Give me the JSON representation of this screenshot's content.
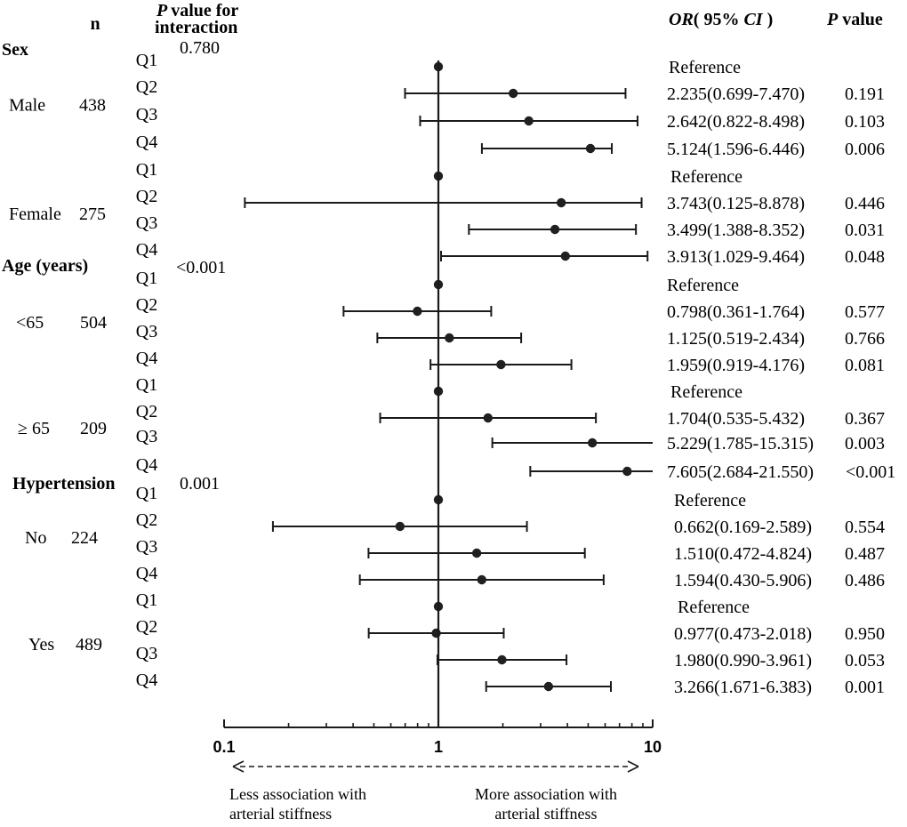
{
  "chart_data": {
    "type": "forest",
    "scale": "log",
    "xlim": [
      0.1,
      10
    ],
    "reference_value": 1,
    "x_ticks": [
      "0.1",
      "1",
      "10"
    ],
    "headers": {
      "n": "n",
      "p_interaction_line1": "value for",
      "p_interaction_p": "P",
      "p_interaction_line2": "interaction",
      "or_label": "OR",
      "ci_open": "( 95% ",
      "ci_label": "CI",
      "ci_close": " )",
      "p_value_p": "P",
      "p_value_label": "value"
    },
    "arrow_left_label": [
      "Less association with",
      "arterial stiffness"
    ],
    "arrow_right_label": [
      "More association with",
      "arterial stiffness"
    ],
    "sections": [
      {
        "title": "Sex",
        "p_interaction": "0.780",
        "groups": [
          {
            "label": "Male",
            "n": "438",
            "rows": [
              {
                "q": "Q1",
                "or": 1,
                "lo": null,
                "hi": null,
                "text": "Reference",
                "p": ""
              },
              {
                "q": "Q2",
                "or": 2.235,
                "lo": 0.699,
                "hi": 7.47,
                "text": "2.235(0.699-7.470)",
                "p": "0.191"
              },
              {
                "q": "Q3",
                "or": 2.642,
                "lo": 0.822,
                "hi": 8.498,
                "text": "2.642(0.822-8.498)",
                "p": "0.103"
              },
              {
                "q": "Q4",
                "or": 5.124,
                "lo": 1.596,
                "hi": 6.446,
                "text": "5.124(1.596-6.446)",
                "p": "0.006"
              }
            ]
          },
          {
            "label": "Female",
            "n": "275",
            "rows": [
              {
                "q": "Q1",
                "or": 1,
                "lo": null,
                "hi": null,
                "text": "Reference",
                "p": ""
              },
              {
                "q": "Q2",
                "or": 3.743,
                "lo": 0.125,
                "hi": 8.878,
                "text": "3.743(0.125-8.878)",
                "p": "0.446"
              },
              {
                "q": "Q3",
                "or": 3.499,
                "lo": 1.388,
                "hi": 8.352,
                "text": "3.499(1.388-8.352)",
                "p": "0.031"
              },
              {
                "q": "Q4",
                "or": 3.913,
                "lo": 1.029,
                "hi": 9.464,
                "text": "3.913(1.029-9.464)",
                "p": "0.048"
              }
            ]
          }
        ]
      },
      {
        "title": "Age (years)",
        "p_interaction": "<0.001",
        "groups": [
          {
            "label": "<65",
            "n": "504",
            "rows": [
              {
                "q": "Q1",
                "or": 1,
                "lo": null,
                "hi": null,
                "text": "Reference",
                "p": ""
              },
              {
                "q": "Q2",
                "or": 0.798,
                "lo": 0.361,
                "hi": 1.764,
                "text": "0.798(0.361-1.764)",
                "p": "0.577"
              },
              {
                "q": "Q3",
                "or": 1.125,
                "lo": 0.519,
                "hi": 2.434,
                "text": "1.125(0.519-2.434)",
                "p": "0.766"
              },
              {
                "q": "Q4",
                "or": 1.959,
                "lo": 0.919,
                "hi": 4.176,
                "text": "1.959(0.919-4.176)",
                "p": "0.081"
              }
            ]
          },
          {
            "label": "≥ 65",
            "n": "209",
            "rows": [
              {
                "q": "Q1",
                "or": 1,
                "lo": null,
                "hi": null,
                "text": "Reference",
                "p": ""
              },
              {
                "q": "Q2",
                "or": 1.704,
                "lo": 0.535,
                "hi": 5.432,
                "text": "1.704(0.535-5.432)",
                "p": "0.367"
              },
              {
                "q": "Q3",
                "or": 5.229,
                "lo": 1.785,
                "hi": 15.315,
                "text": "5.229(1.785-15.315)",
                "p": "0.003"
              },
              {
                "q": "Q4",
                "or": 7.605,
                "lo": 2.684,
                "hi": 21.55,
                "text": "7.605(2.684-21.550)",
                "p": "<0.001"
              }
            ]
          }
        ]
      },
      {
        "title": "Hypertension",
        "p_interaction": "0.001",
        "groups": [
          {
            "label": "No",
            "n": "224",
            "rows": [
              {
                "q": "Q1",
                "or": 1,
                "lo": null,
                "hi": null,
                "text": "Reference",
                "p": ""
              },
              {
                "q": "Q2",
                "or": 0.662,
                "lo": 0.169,
                "hi": 2.589,
                "text": "0.662(0.169-2.589)",
                "p": "0.554"
              },
              {
                "q": "Q3",
                "or": 1.51,
                "lo": 0.472,
                "hi": 4.824,
                "text": "1.510(0.472-4.824)",
                "p": "0.487"
              },
              {
                "q": "Q4",
                "or": 1.594,
                "lo": 0.43,
                "hi": 5.906,
                "text": "1.594(0.430-5.906)",
                "p": "0.486"
              }
            ]
          },
          {
            "label": "Yes",
            "n": "489",
            "rows": [
              {
                "q": "Q1",
                "or": 1,
                "lo": null,
                "hi": null,
                "text": "Reference",
                "p": ""
              },
              {
                "q": "Q2",
                "or": 0.977,
                "lo": 0.473,
                "hi": 2.018,
                "text": "0.977(0.473-2.018)",
                "p": "0.950"
              },
              {
                "q": "Q3",
                "or": 1.98,
                "lo": 0.99,
                "hi": 3.961,
                "text": "1.980(0.990-3.961)",
                "p": "0.053"
              },
              {
                "q": "Q4",
                "or": 3.266,
                "lo": 1.671,
                "hi": 6.383,
                "text": "3.266(1.671-6.383)",
                "p": "0.001"
              }
            ]
          }
        ]
      }
    ]
  }
}
